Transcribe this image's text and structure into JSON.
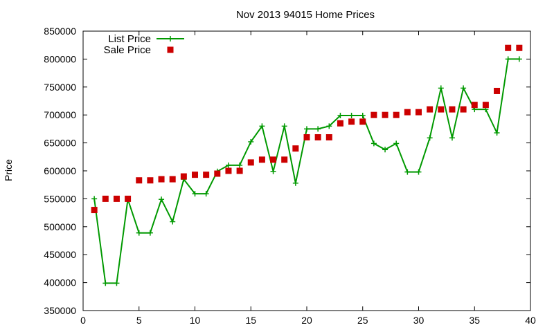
{
  "chart_data": {
    "type": "line",
    "title": "Nov 2013 94015 Home Prices",
    "xlabel": "",
    "ylabel": "Price",
    "xlim": [
      0,
      40
    ],
    "ylim": [
      350000,
      850000
    ],
    "xticks": [
      0,
      5,
      10,
      15,
      20,
      25,
      30,
      35,
      40
    ],
    "yticks": [
      350000,
      400000,
      450000,
      500000,
      550000,
      600000,
      650000,
      700000,
      750000,
      800000,
      850000
    ],
    "grid": false,
    "legend_position": "top-left",
    "series": [
      {
        "name": "List Price",
        "style": "line-plus",
        "color": "#009900",
        "x": [
          1,
          2,
          3,
          4,
          5,
          6,
          7,
          8,
          9,
          10,
          11,
          12,
          13,
          14,
          15,
          16,
          17,
          18,
          19,
          20,
          21,
          22,
          23,
          24,
          25,
          26,
          27,
          28,
          29,
          30,
          31,
          32,
          33,
          34,
          35,
          36,
          37,
          38,
          39
        ],
        "y": [
          550000,
          399000,
          399000,
          549000,
          489000,
          489000,
          549000,
          509000,
          585000,
          559000,
          559000,
          599000,
          610000,
          610000,
          652000,
          680000,
          599000,
          680000,
          578000,
          675000,
          675000,
          680000,
          699000,
          699000,
          699000,
          649000,
          638000,
          649000,
          598000,
          598000,
          659000,
          748000,
          659000,
          748000,
          710000,
          710000,
          668000,
          800000,
          800000
        ]
      },
      {
        "name": "Sale Price",
        "style": "square-marker",
        "color": "#cc0000",
        "x": [
          1,
          2,
          3,
          4,
          5,
          6,
          7,
          8,
          9,
          10,
          11,
          12,
          13,
          14,
          15,
          16,
          17,
          18,
          19,
          20,
          21,
          22,
          23,
          24,
          25,
          26,
          27,
          28,
          29,
          30,
          31,
          32,
          33,
          34,
          35,
          36,
          37,
          38,
          39
        ],
        "y": [
          530000,
          550000,
          550000,
          550000,
          583000,
          583000,
          585000,
          585000,
          590000,
          593000,
          593000,
          595000,
          600000,
          600000,
          615000,
          620000,
          620000,
          620000,
          640000,
          660000,
          660000,
          660000,
          685000,
          688000,
          688000,
          700000,
          700000,
          700000,
          705000,
          705000,
          710000,
          710000,
          710000,
          710000,
          718000,
          718000,
          743000,
          820000,
          820000
        ]
      }
    ]
  }
}
